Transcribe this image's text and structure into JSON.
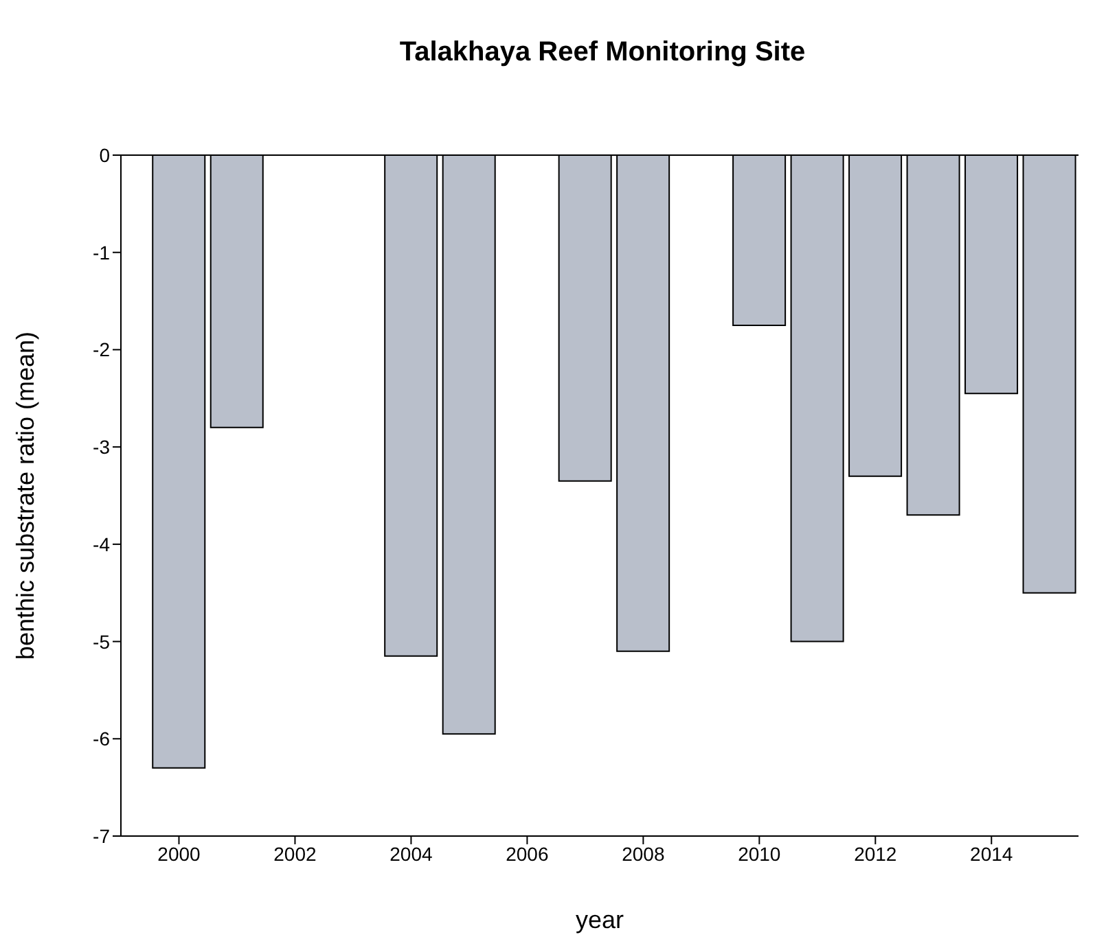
{
  "chart_data": {
    "type": "bar",
    "title": "Talakhaya Reef Monitoring Site",
    "xlabel": "year",
    "ylabel": "benthic substrate ratio (mean)",
    "x": [
      2000,
      2001,
      2004,
      2005,
      2007,
      2008,
      2010,
      2011,
      2012,
      2013,
      2014,
      2015
    ],
    "values": [
      -6.3,
      -2.8,
      -5.15,
      -5.95,
      -3.35,
      -5.1,
      -1.75,
      -5.0,
      -3.3,
      -3.7,
      -2.45,
      -4.5
    ],
    "color": "#b9bfcb",
    "xlim": [
      1999,
      2015.5
    ],
    "xticks": [
      2000,
      2002,
      2004,
      2006,
      2008,
      2010,
      2012,
      2014
    ],
    "ylim": [
      -7,
      0
    ],
    "yticks": [
      0,
      -1,
      -2,
      -3,
      -4,
      -5,
      -6,
      -7
    ],
    "grid": false,
    "legend": false
  }
}
